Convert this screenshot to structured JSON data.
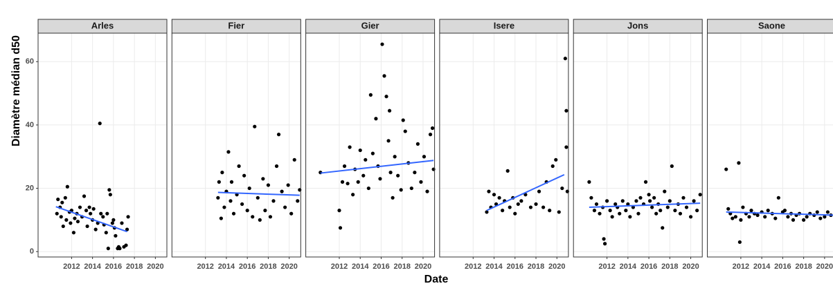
{
  "chart_data": {
    "type": "scatter",
    "x_label": "Date",
    "y_label": "Diamètre médian  d50",
    "xlim": [
      2008.8,
      2021.1
    ],
    "ylim": [
      -1.7,
      69
    ],
    "xticks": [
      2012,
      2014,
      2016,
      2018,
      2020
    ],
    "yticks": [
      0,
      20,
      40,
      60
    ],
    "grid": true,
    "point_color": "#000000",
    "trend_color": "#3366ff",
    "facets": [
      {
        "name": "Arles",
        "x": [
          2010.6,
          2010.7,
          2010.9,
          2011.0,
          2011.1,
          2011.2,
          2011.4,
          2011.5,
          2011.6,
          2011.8,
          2011.9,
          2012.0,
          2012.2,
          2012.3,
          2012.5,
          2012.6,
          2012.8,
          2013.0,
          2013.2,
          2013.4,
          2013.5,
          2013.7,
          2013.8,
          2014.0,
          2014.1,
          2014.3,
          2014.5,
          2014.7,
          2014.8,
          2015.0,
          2015.1,
          2015.3,
          2015.4,
          2015.6,
          2015.7,
          2015.9,
          2016.0,
          2016.2,
          2016.4,
          2016.6,
          2016.8,
          2017.0,
          2017.2,
          2017.4,
          2015.5,
          2016.1,
          2016.5,
          2017.3
        ],
        "values": [
          12,
          16.5,
          14,
          11,
          15.5,
          8,
          17,
          10,
          20.5,
          12.5,
          9,
          13,
          6,
          10.5,
          12,
          9.5,
          14,
          11,
          17.5,
          13,
          8,
          14,
          12,
          10,
          13.5,
          7,
          9,
          40.5,
          12,
          11,
          8.5,
          6,
          12,
          19.5,
          18,
          9,
          10,
          5,
          1,
          1,
          9,
          1.5,
          2,
          11,
          1,
          7.5,
          1.5,
          7
        ],
        "trend": {
          "x": [
            2010.5,
            2017.3
          ],
          "values": [
            14.2,
            6.3
          ]
        }
      },
      {
        "name": "Fier",
        "x": [
          2013.2,
          2013.3,
          2013.5,
          2013.6,
          2013.8,
          2014.0,
          2014.2,
          2014.4,
          2014.5,
          2014.7,
          2015.0,
          2015.2,
          2015.5,
          2015.7,
          2016.0,
          2016.2,
          2016.5,
          2016.7,
          2017.0,
          2017.2,
          2017.5,
          2017.7,
          2018.0,
          2018.2,
          2018.5,
          2018.8,
          2019.0,
          2019.3,
          2019.6,
          2019.9,
          2020.2,
          2020.5,
          2020.8,
          2021.0
        ],
        "values": [
          17,
          22,
          10.5,
          25,
          14,
          19,
          31.5,
          16,
          22,
          12,
          18,
          27,
          15,
          24,
          13,
          20,
          11,
          39.5,
          17,
          10,
          23,
          13,
          21,
          11,
          16,
          27,
          37,
          19,
          14,
          21,
          12,
          29,
          16,
          19.5
        ],
        "trend": {
          "x": [
            2013.2,
            2021.0
          ],
          "values": [
            18.7,
            17.8
          ]
        }
      },
      {
        "name": "Gier",
        "x": [
          2010.2,
          2012.0,
          2012.1,
          2012.3,
          2012.5,
          2012.8,
          2013.0,
          2013.3,
          2013.5,
          2013.8,
          2014.0,
          2014.3,
          2014.5,
          2014.8,
          2015.0,
          2015.2,
          2015.5,
          2015.7,
          2015.9,
          2016.1,
          2016.3,
          2016.5,
          2016.7,
          2016.8,
          2016.9,
          2017.1,
          2017.3,
          2017.6,
          2017.9,
          2018.1,
          2018.3,
          2018.6,
          2018.9,
          2019.2,
          2019.5,
          2019.8,
          2020.1,
          2020.4,
          2020.7,
          2020.9,
          2021.0
        ],
        "values": [
          25,
          13,
          7.5,
          22,
          27,
          21.5,
          33,
          18,
          26,
          22,
          32,
          24,
          29,
          20,
          49.5,
          31,
          42,
          27,
          23,
          65.5,
          55.5,
          49,
          35,
          44.5,
          25,
          17,
          30,
          24,
          19.5,
          41.5,
          38,
          28,
          20,
          25,
          34,
          22,
          30,
          19,
          37,
          39,
          26
        ],
        "trend": {
          "x": [
            2010.2,
            2021.0
          ],
          "values": [
            24.8,
            28.8
          ]
        }
      },
      {
        "name": "Isere",
        "x": [
          2013.3,
          2013.5,
          2013.7,
          2014.0,
          2014.2,
          2014.5,
          2014.8,
          2015.0,
          2015.3,
          2015.5,
          2015.8,
          2016.0,
          2016.3,
          2016.6,
          2017.0,
          2017.5,
          2018.0,
          2018.3,
          2018.7,
          2019.0,
          2019.3,
          2019.6,
          2019.9,
          2020.2,
          2020.5,
          2020.8,
          2020.9,
          2020.9,
          2021.0
        ],
        "values": [
          12.5,
          19,
          14,
          18,
          15,
          17,
          13,
          16,
          25.5,
          14,
          17,
          12,
          15,
          16,
          18,
          14,
          15,
          19,
          14,
          22,
          13,
          27,
          29,
          12.5,
          20,
          61,
          44.5,
          33,
          19
        ],
        "trend": {
          "x": [
            2013.3,
            2020.7
          ],
          "values": [
            13,
            24.3
          ]
        }
      },
      {
        "name": "Jons",
        "x": [
          2010.3,
          2010.5,
          2010.8,
          2011.0,
          2011.3,
          2011.6,
          2011.7,
          2011.8,
          2012.0,
          2012.3,
          2012.5,
          2012.8,
          2013.0,
          2013.2,
          2013.5,
          2013.8,
          2014.0,
          2014.2,
          2014.5,
          2014.8,
          2015.0,
          2015.2,
          2015.5,
          2015.7,
          2016.0,
          2016.1,
          2016.3,
          2016.5,
          2016.7,
          2016.9,
          2017.1,
          2017.3,
          2017.5,
          2017.8,
          2018.0,
          2018.2,
          2018.5,
          2018.8,
          2019.0,
          2019.3,
          2019.6,
          2020.0,
          2020.3,
          2020.6,
          2020.9
        ],
        "values": [
          22,
          17,
          13,
          15,
          12,
          14,
          4,
          2.5,
          16,
          13,
          11,
          15,
          14,
          12,
          16,
          13,
          15,
          11,
          14,
          16,
          12,
          17,
          15,
          22,
          18,
          16,
          14,
          17,
          12,
          15,
          13,
          7.5,
          19,
          14,
          16,
          27,
          13,
          15,
          12,
          17,
          14,
          11,
          16,
          13,
          18
        ],
        "trend": {
          "x": [
            2010.3,
            2020.9
          ],
          "values": [
            14,
            15.3
          ]
        }
      },
      {
        "name": "Saone",
        "x": [
          2010.6,
          2010.8,
          2011.0,
          2011.2,
          2011.5,
          2011.8,
          2011.9,
          2012.0,
          2012.2,
          2012.5,
          2012.8,
          2013.0,
          2013.3,
          2013.6,
          2014.0,
          2014.3,
          2014.6,
          2015.0,
          2015.3,
          2015.6,
          2016.0,
          2016.2,
          2016.5,
          2016.8,
          2017.0,
          2017.3,
          2017.6,
          2018.0,
          2018.3,
          2018.6,
          2019.0,
          2019.3,
          2019.6,
          2020.0,
          2020.3,
          2020.6,
          2021.0
        ],
        "values": [
          26,
          13.5,
          12,
          10.5,
          11,
          28,
          3,
          10,
          14,
          12,
          11,
          13,
          12,
          11.5,
          12.5,
          11,
          13,
          12,
          10.5,
          17,
          12.5,
          13,
          11,
          12,
          10,
          11.5,
          12,
          10,
          11,
          12,
          11.5,
          12.5,
          10.5,
          11,
          12.5,
          11.5,
          12
        ],
        "trend": {
          "x": [
            2010.6,
            2021.0
          ],
          "values": [
            12.5,
            11.5
          ]
        }
      }
    ]
  }
}
